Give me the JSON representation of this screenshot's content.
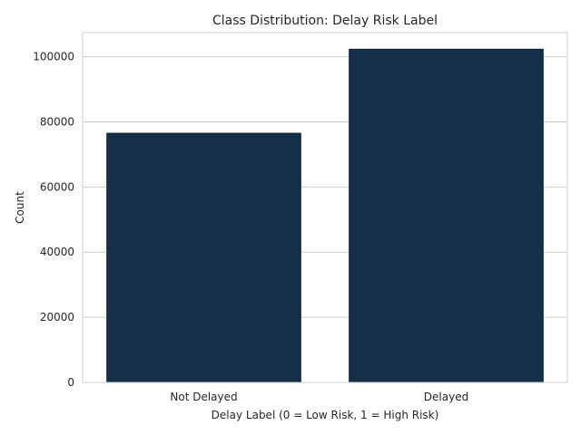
{
  "chart_data": {
    "type": "bar",
    "title": "Class Distribution: Delay Risk Label",
    "xlabel": "Delay Label (0 = Low Risk, 1 = High Risk)",
    "ylabel": "Count",
    "categories": [
      "Not Delayed",
      "Delayed"
    ],
    "values": [
      76500,
      102300
    ],
    "ylim": [
      0,
      107400
    ],
    "yticks": [
      0,
      20000,
      40000,
      60000,
      80000,
      100000
    ],
    "ytick_labels": [
      "0",
      "20000",
      "40000",
      "60000",
      "80000",
      "100000"
    ],
    "grid": "y",
    "legend": "none"
  },
  "colors": {
    "bar": "#142f47",
    "bar_edge": "#0c1e2e",
    "grid": "#cccccc",
    "spine": "#cccccc",
    "text": "#262626",
    "background": "#ffffff"
  }
}
